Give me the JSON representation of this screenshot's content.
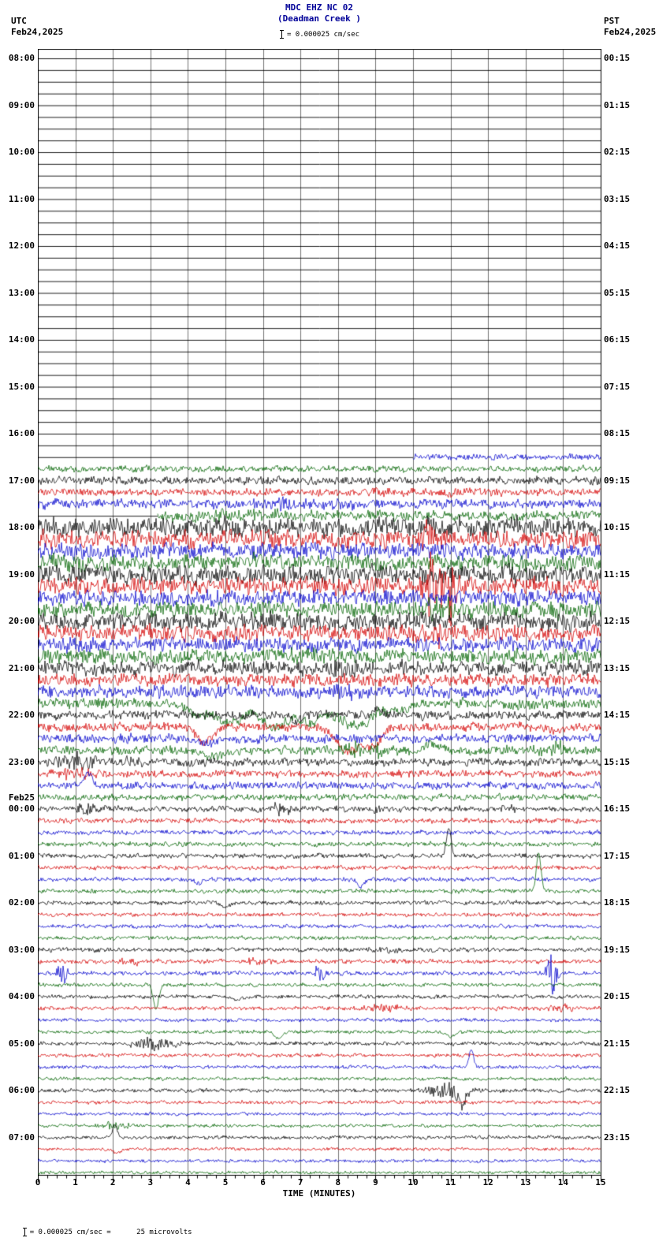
{
  "header": {
    "title": "MDC EHZ NC 02",
    "subtitle": "(Deadman Creek )",
    "scale_label": "= 0.000025 cm/sec",
    "left_tz": "UTC",
    "left_date": "Feb24,2025",
    "right_tz": "PST",
    "right_date": "Feb24,2025"
  },
  "footer": {
    "note": "= 0.000025 cm/sec =      25 microvolts"
  },
  "chart_data": {
    "type": "line",
    "kind": "seismogram-helicorder",
    "station": "MDC EHZ NC 02",
    "station_name": "Deadman Creek",
    "xlabel": "TIME (MINUTES)",
    "x_min": 0,
    "x_max": 15,
    "minutes_per_row": 15,
    "x_ticks": [
      "0",
      "1",
      "2",
      "3",
      "4",
      "5",
      "6",
      "7",
      "8",
      "9",
      "10",
      "11",
      "12",
      "13",
      "14",
      "15"
    ],
    "utc_start_label": "08:00 Feb24,2025",
    "grid": true,
    "trace_colors": {
      "k": "#000000",
      "r": "#d40000",
      "b": "#0000cc",
      "g": "#006400"
    },
    "rows": [
      {
        "c": "k",
        "a": 0,
        "utc": "08:00",
        "pst": "00:15"
      },
      {
        "c": "r",
        "a": 0
      },
      {
        "c": "b",
        "a": 0
      },
      {
        "c": "g",
        "a": 0
      },
      {
        "c": "k",
        "a": 0,
        "utc": "09:00",
        "pst": "01:15"
      },
      {
        "c": "r",
        "a": 0
      },
      {
        "c": "b",
        "a": 0
      },
      {
        "c": "g",
        "a": 0
      },
      {
        "c": "k",
        "a": 0,
        "utc": "10:00",
        "pst": "02:15"
      },
      {
        "c": "r",
        "a": 0
      },
      {
        "c": "b",
        "a": 0
      },
      {
        "c": "g",
        "a": 0
      },
      {
        "c": "k",
        "a": 0,
        "utc": "11:00",
        "pst": "03:15"
      },
      {
        "c": "r",
        "a": 0
      },
      {
        "c": "b",
        "a": 0
      },
      {
        "c": "g",
        "a": 0
      },
      {
        "c": "k",
        "a": 0,
        "utc": "12:00",
        "pst": "04:15"
      },
      {
        "c": "r",
        "a": 0
      },
      {
        "c": "b",
        "a": 0
      },
      {
        "c": "g",
        "a": 0
      },
      {
        "c": "k",
        "a": 0,
        "utc": "13:00",
        "pst": "05:15"
      },
      {
        "c": "r",
        "a": 0
      },
      {
        "c": "b",
        "a": 0
      },
      {
        "c": "g",
        "a": 0
      },
      {
        "c": "k",
        "a": 0,
        "utc": "14:00",
        "pst": "06:15"
      },
      {
        "c": "r",
        "a": 0
      },
      {
        "c": "b",
        "a": 0
      },
      {
        "c": "g",
        "a": 0
      },
      {
        "c": "k",
        "a": 0,
        "utc": "15:00",
        "pst": "07:15"
      },
      {
        "c": "r",
        "a": 0
      },
      {
        "c": "b",
        "a": 0
      },
      {
        "c": "g",
        "a": 0
      },
      {
        "c": "k",
        "a": 0,
        "utc": "16:00",
        "pst": "08:15"
      },
      {
        "c": "r",
        "a": 0
      },
      {
        "c": "b",
        "a": 1.8,
        "start": 10
      },
      {
        "c": "g",
        "a": 1.8
      },
      {
        "c": "k",
        "a": 2.2,
        "utc": "17:00",
        "pst": "09:15"
      },
      {
        "c": "r",
        "a": 2.2
      },
      {
        "c": "b",
        "a": 2.6,
        "ev": [
          {
            "t": "burst",
            "m": 6.5,
            "a": 5,
            "w": 1.2
          }
        ]
      },
      {
        "c": "g",
        "a": 2.8,
        "start": 3.2,
        "ev": [
          {
            "t": "burst",
            "m": 5,
            "a": 5,
            "w": 1.5
          }
        ]
      },
      {
        "c": "k",
        "a": 5.5,
        "utc": "18:00",
        "pst": "10:15"
      },
      {
        "c": "r",
        "a": 5,
        "ev": [
          {
            "t": "burst",
            "m": 10.5,
            "a": 22,
            "w": 0.25
          }
        ]
      },
      {
        "c": "b",
        "a": 4.5
      },
      {
        "c": "g",
        "a": 4.5
      },
      {
        "c": "k",
        "a": 5.5,
        "utc": "19:00",
        "pst": "11:15"
      },
      {
        "c": "r",
        "a": 5,
        "ev": [
          {
            "t": "burst",
            "m": 10.45,
            "a": 50,
            "w": 0.12
          },
          {
            "t": "burst",
            "m": 10.75,
            "a": 25,
            "w": 0.15
          },
          {
            "t": "burst",
            "m": 11,
            "a": 45,
            "w": 0.15
          }
        ]
      },
      {
        "c": "b",
        "a": 4.5
      },
      {
        "c": "g",
        "a": 4.5,
        "ev": [
          {
            "t": "burst",
            "m": 10.6,
            "a": 10,
            "w": 0.4
          }
        ]
      },
      {
        "c": "k",
        "a": 5,
        "utc": "20:00",
        "pst": "12:15"
      },
      {
        "c": "r",
        "a": 4.5,
        "ev": [
          {
            "t": "burst",
            "m": 10.6,
            "a": 14,
            "w": 0.3
          }
        ]
      },
      {
        "c": "b",
        "a": 4
      },
      {
        "c": "g",
        "a": 4
      },
      {
        "c": "k",
        "a": 4,
        "utc": "21:00",
        "pst": "13:15",
        "ev": [
          {
            "t": "burst",
            "m": 8.25,
            "a": 12,
            "w": 0.35
          }
        ]
      },
      {
        "c": "r",
        "a": 3.5
      },
      {
        "c": "b",
        "a": 3.5,
        "ev": [
          {
            "t": "burst",
            "m": 8.2,
            "a": 8,
            "w": 0.3
          }
        ]
      },
      {
        "c": "g",
        "a": 3,
        "ev": [
          {
            "t": "dip",
            "m": 4.3,
            "a": 16,
            "w": 0.25
          },
          {
            "t": "dip",
            "m": 5.1,
            "a": 26,
            "w": 0.3
          },
          {
            "t": "dip",
            "m": 6.3,
            "a": 30,
            "w": 0.4
          },
          {
            "t": "dip",
            "m": 7.3,
            "a": 22,
            "w": 0.35
          },
          {
            "t": "dip",
            "m": 8.5,
            "a": 30,
            "w": 0.4
          },
          {
            "t": "dip",
            "m": 9.6,
            "a": 10,
            "w": 0.3
          }
        ]
      },
      {
        "c": "k",
        "a": 2.5,
        "utc": "22:00",
        "pst": "14:15",
        "ev": [
          {
            "t": "dip",
            "m": 6.9,
            "a": 10,
            "w": 0.1
          },
          {
            "t": "peak",
            "m": 9,
            "a": 8,
            "w": 0.12
          }
        ]
      },
      {
        "c": "r",
        "a": 2.5,
        "ev": [
          {
            "t": "dip",
            "m": 4.45,
            "a": 20,
            "w": 0.2
          },
          {
            "t": "dip",
            "m": 8.25,
            "a": 30,
            "w": 0.3
          },
          {
            "t": "dip",
            "m": 8.9,
            "a": 22,
            "w": 0.25
          },
          {
            "t": "dip",
            "m": 13.8,
            "a": 6,
            "w": 0.15
          }
        ]
      },
      {
        "c": "b",
        "a": 2.5,
        "ev": [
          {
            "t": "dip",
            "m": 4.5,
            "a": 6,
            "w": 0.2
          }
        ]
      },
      {
        "c": "g",
        "a": 2.5,
        "ev": [
          {
            "t": "dip",
            "m": 4.6,
            "a": 8,
            "w": 0.3
          },
          {
            "t": "burst",
            "m": 8.6,
            "a": 12,
            "w": 0.5
          },
          {
            "t": "peak",
            "m": 10.5,
            "a": 6,
            "w": 0.2
          },
          {
            "t": "burst",
            "m": 13.9,
            "a": 8,
            "w": 0.3
          }
        ]
      },
      {
        "c": "k",
        "a": 2.2,
        "utc": "23:00",
        "pst": "15:15",
        "ev": [
          {
            "t": "burst",
            "m": 1,
            "a": 10,
            "w": 0.5
          },
          {
            "t": "burst",
            "m": 2.6,
            "a": 6,
            "w": 0.2
          }
        ]
      },
      {
        "c": "r",
        "a": 2,
        "ev": [
          {
            "t": "burst",
            "m": 1.1,
            "a": 8,
            "w": 0.4
          }
        ]
      },
      {
        "c": "b",
        "a": 2,
        "ev": [
          {
            "t": "peak",
            "m": 1.35,
            "a": 16,
            "w": 0.1
          }
        ]
      },
      {
        "c": "g",
        "a": 1.8
      },
      {
        "c": "k",
        "a": 1.6,
        "utc": "00:00",
        "pst": "16:15",
        "date": "Feb25",
        "ev": [
          {
            "t": "burst",
            "m": 1.3,
            "a": 9,
            "w": 0.2
          },
          {
            "t": "burst",
            "m": 6.4,
            "a": 7,
            "w": 0.25
          },
          {
            "t": "burst",
            "m": 9,
            "a": 5,
            "w": 0.15
          },
          {
            "t": "burst",
            "m": 12.6,
            "a": 6,
            "w": 0.2
          }
        ]
      },
      {
        "c": "r",
        "a": 1.4
      },
      {
        "c": "b",
        "a": 1.3
      },
      {
        "c": "g",
        "a": 1.3
      },
      {
        "c": "k",
        "a": 1.3,
        "utc": "01:00",
        "pst": "17:15",
        "ev": [
          {
            "t": "peak",
            "m": 10.95,
            "a": 36,
            "w": 0.06
          }
        ]
      },
      {
        "c": "r",
        "a": 1.2
      },
      {
        "c": "b",
        "a": 1.2,
        "ev": [
          {
            "t": "dip",
            "m": 4.3,
            "a": 6,
            "w": 0.08
          },
          {
            "t": "dip",
            "m": 8.6,
            "a": 10,
            "w": 0.08
          }
        ]
      },
      {
        "c": "g",
        "a": 1.2,
        "ev": [
          {
            "t": "peak",
            "m": 13.35,
            "a": 48,
            "w": 0.06
          }
        ]
      },
      {
        "c": "k",
        "a": 1.2,
        "utc": "02:00",
        "pst": "18:15",
        "ev": [
          {
            "t": "dip",
            "m": 5,
            "a": 5,
            "w": 0.1
          }
        ]
      },
      {
        "c": "r",
        "a": 1.1
      },
      {
        "c": "b",
        "a": 1.1
      },
      {
        "c": "g",
        "a": 1.1
      },
      {
        "c": "k",
        "a": 1.2,
        "utc": "03:00",
        "pst": "19:15",
        "ev": [
          {
            "t": "burst",
            "m": 9.3,
            "a": 4,
            "w": 0.3
          }
        ]
      },
      {
        "c": "r",
        "a": 1.2,
        "ev": [
          {
            "t": "burst",
            "m": 2.5,
            "a": 5,
            "w": 0.3
          },
          {
            "t": "burst",
            "m": 5.8,
            "a": 4,
            "w": 0.3
          }
        ]
      },
      {
        "c": "b",
        "a": 1.2,
        "ev": [
          {
            "t": "burst",
            "m": 0.65,
            "a": 14,
            "w": 0.1
          },
          {
            "t": "burst",
            "m": 7.5,
            "a": 12,
            "w": 0.12
          },
          {
            "t": "burst",
            "m": 13.7,
            "a": 26,
            "w": 0.1
          }
        ]
      },
      {
        "c": "g",
        "a": 1.1,
        "ev": [
          {
            "t": "dip",
            "m": 3.15,
            "a": 32,
            "w": 0.07
          }
        ]
      },
      {
        "c": "k",
        "a": 1.1,
        "utc": "04:00",
        "pst": "20:15",
        "ev": [
          {
            "t": "dip",
            "m": 5.3,
            "a": 5,
            "w": 0.1
          }
        ]
      },
      {
        "c": "r",
        "a": 1.1,
        "ev": [
          {
            "t": "burst",
            "m": 9.2,
            "a": 5,
            "w": 0.4
          },
          {
            "t": "burst",
            "m": 14,
            "a": 5,
            "w": 0.3
          }
        ]
      },
      {
        "c": "b",
        "a": 1
      },
      {
        "c": "g",
        "a": 1,
        "ev": [
          {
            "t": "dip",
            "m": 6.4,
            "a": 8,
            "w": 0.1
          },
          {
            "t": "dip",
            "m": 11,
            "a": 6,
            "w": 0.1
          }
        ]
      },
      {
        "c": "k",
        "a": 1.1,
        "utc": "05:00",
        "pst": "21:15",
        "ev": [
          {
            "t": "burst",
            "m": 3.1,
            "a": 8,
            "w": 0.4
          }
        ]
      },
      {
        "c": "r",
        "a": 1
      },
      {
        "c": "b",
        "a": 1,
        "ev": [
          {
            "t": "peak",
            "m": 11.55,
            "a": 22,
            "w": 0.06
          }
        ]
      },
      {
        "c": "g",
        "a": 1
      },
      {
        "c": "k",
        "a": 1.1,
        "utc": "06:00",
        "pst": "22:15",
        "ev": [
          {
            "t": "burst",
            "m": 11,
            "a": 12,
            "w": 0.4
          },
          {
            "t": "dip",
            "m": 11.3,
            "a": 16,
            "w": 0.1
          }
        ]
      },
      {
        "c": "r",
        "a": 1
      },
      {
        "c": "b",
        "a": 0.9
      },
      {
        "c": "g",
        "a": 0.9,
        "ev": [
          {
            "t": "burst",
            "m": 2.1,
            "a": 5,
            "w": 0.3
          }
        ]
      },
      {
        "c": "k",
        "a": 1,
        "utc": "07:00",
        "pst": "23:15",
        "ev": [
          {
            "t": "peak",
            "m": 2.05,
            "a": 15,
            "w": 0.06
          }
        ]
      },
      {
        "c": "r",
        "a": 0.9,
        "ev": [
          {
            "t": "dip",
            "m": 2.1,
            "a": 5,
            "w": 0.1
          }
        ]
      },
      {
        "c": "b",
        "a": 0.9
      },
      {
        "c": "g",
        "a": 0.9
      }
    ]
  }
}
